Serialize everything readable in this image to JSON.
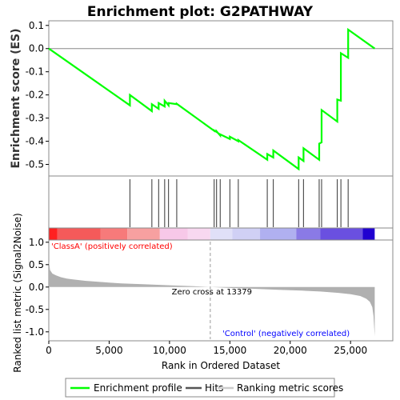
{
  "title": "Enrichment plot: G2PATHWAY",
  "chart_data": [
    {
      "panel": "enrichment",
      "type": "line",
      "ylabel": "Enrichment score (ES)",
      "xlim": [
        0,
        28500
      ],
      "ylim": [
        -0.55,
        0.12
      ],
      "yticks": [
        0.1,
        0.0,
        -0.1,
        -0.2,
        -0.3,
        -0.4,
        -0.5
      ],
      "ytick_labels": [
        "0.1",
        "0.0",
        "-0.1",
        "-0.2",
        "-0.3",
        "-0.4",
        "-0.5"
      ],
      "line_color": "#00ff00",
      "series": [
        {
          "name": "Enrichment profile",
          "x": [
            0,
            6720,
            6720,
            8540,
            8540,
            9100,
            9100,
            9600,
            9600,
            9920,
            9920,
            10600,
            10600,
            13700,
            13700,
            13900,
            13900,
            14200,
            14200,
            15000,
            15000,
            15700,
            15700,
            18100,
            18100,
            18600,
            18600,
            20700,
            20700,
            21100,
            21100,
            22400,
            22400,
            22600,
            22600,
            23900,
            23900,
            24200,
            24200,
            24800,
            24800,
            27000
          ],
          "y": [
            0.0,
            -0.245,
            -0.2,
            -0.27,
            -0.24,
            -0.26,
            -0.235,
            -0.25,
            -0.225,
            -0.245,
            -0.235,
            -0.24,
            -0.238,
            -0.355,
            -0.353,
            -0.36,
            -0.357,
            -0.375,
            -0.37,
            -0.39,
            -0.38,
            -0.4,
            -0.395,
            -0.48,
            -0.455,
            -0.47,
            -0.44,
            -0.52,
            -0.47,
            -0.485,
            -0.43,
            -0.48,
            -0.41,
            -0.405,
            -0.265,
            -0.315,
            -0.22,
            -0.225,
            -0.02,
            -0.04,
            0.082,
            0.0
          ]
        }
      ]
    },
    {
      "panel": "hits",
      "type": "scatter",
      "name": "Hits",
      "x": [
        6720,
        8540,
        9100,
        9600,
        9920,
        10600,
        13700,
        13900,
        14200,
        15000,
        15700,
        18100,
        18600,
        20700,
        21100,
        22400,
        22600,
        23900,
        24200,
        24800
      ]
    },
    {
      "panel": "ranked_metric",
      "type": "area",
      "name": "Ranking metric scores",
      "xlabel": "Rank in Ordered Dataset",
      "ylabel": "Ranked list metric (Signal2Noise)",
      "xlim": [
        0,
        28500
      ],
      "ylim": [
        -1.2,
        1.05
      ],
      "xticks": [
        0,
        5000,
        10000,
        15000,
        20000,
        25000
      ],
      "xtick_labels": [
        "0",
        "5,000",
        "10,000",
        "15,000",
        "20,000",
        "25,000"
      ],
      "yticks": [
        1.0,
        0.5,
        0.0,
        -0.5,
        -1.0
      ],
      "ytick_labels": [
        "1.0",
        "0.5",
        "0.0",
        "-0.5",
        "-1.0"
      ],
      "x": [
        0,
        100,
        300,
        600,
        1000,
        1500,
        2000,
        3000,
        4000,
        5000,
        6000,
        8000,
        10000,
        12000,
        13379,
        15000,
        17000,
        19000,
        21000,
        22500,
        24000,
        25000,
        25800,
        26300,
        26600,
        26800,
        26900,
        27000
      ],
      "values": [
        0.6,
        0.38,
        0.3,
        0.26,
        0.22,
        0.19,
        0.17,
        0.14,
        0.12,
        0.1,
        0.08,
        0.06,
        0.04,
        0.02,
        0.0,
        -0.02,
        -0.04,
        -0.06,
        -0.08,
        -0.1,
        -0.13,
        -0.16,
        -0.2,
        -0.26,
        -0.33,
        -0.45,
        -0.65,
        -1.1
      ],
      "zero_cross_label": "Zero cross at 13379",
      "zero_cross_rank": 13379,
      "class_a_label": "'ClassA' (positively correlated)",
      "control_label": "'Control' (negatively correlated)"
    }
  ],
  "legend": {
    "items": [
      {
        "label": "Enrichment profile",
        "color": "#00ff00"
      },
      {
        "label": "Hits",
        "color": "#555555"
      },
      {
        "label": "Ranking metric scores",
        "color": "#cccccc"
      }
    ]
  },
  "colors": {
    "class_a_text": "#ff0000",
    "control_text": "#0000ff",
    "fill_gray": "#b0b0b0"
  }
}
